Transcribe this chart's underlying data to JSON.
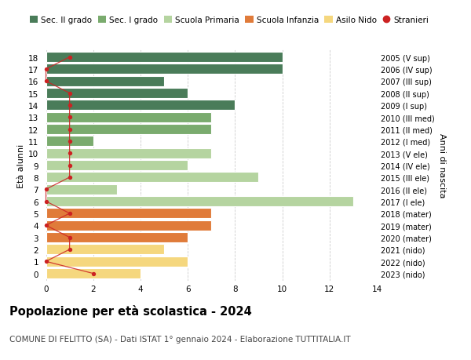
{
  "ages": [
    18,
    17,
    16,
    15,
    14,
    13,
    12,
    11,
    10,
    9,
    8,
    7,
    6,
    5,
    4,
    3,
    2,
    1,
    0
  ],
  "years": [
    "2005 (V sup)",
    "2006 (IV sup)",
    "2007 (III sup)",
    "2008 (II sup)",
    "2009 (I sup)",
    "2010 (III med)",
    "2011 (II med)",
    "2012 (I med)",
    "2013 (V ele)",
    "2014 (IV ele)",
    "2015 (III ele)",
    "2016 (II ele)",
    "2017 (I ele)",
    "2018 (mater)",
    "2019 (mater)",
    "2020 (mater)",
    "2021 (nido)",
    "2022 (nido)",
    "2023 (nido)"
  ],
  "bar_values": [
    10,
    10,
    5,
    6,
    8,
    7,
    7,
    2,
    7,
    6,
    9,
    3,
    13,
    7,
    7,
    6,
    5,
    6,
    4
  ],
  "bar_colors": [
    "#4a7c59",
    "#4a7c59",
    "#4a7c59",
    "#4a7c59",
    "#4a7c59",
    "#7aab6e",
    "#7aab6e",
    "#7aab6e",
    "#b5d4a0",
    "#b5d4a0",
    "#b5d4a0",
    "#b5d4a0",
    "#b5d4a0",
    "#e07b3a",
    "#e07b3a",
    "#e07b3a",
    "#f5d77e",
    "#f5d77e",
    "#f5d77e"
  ],
  "stranieri_x": [
    1,
    0,
    0,
    1,
    1,
    1,
    1,
    1,
    1,
    1,
    1,
    0,
    0,
    1,
    0,
    1,
    1,
    0,
    2
  ],
  "legend_labels": [
    "Sec. II grado",
    "Sec. I grado",
    "Scuola Primaria",
    "Scuola Infanzia",
    "Asilo Nido",
    "Stranieri"
  ],
  "legend_colors": [
    "#4a7c59",
    "#7aab6e",
    "#b5d4a0",
    "#e07b3a",
    "#f5d77e",
    "#cc2222"
  ],
  "title": "Popolazione per età scolastica - 2024",
  "subtitle": "COMUNE DI FELITTO (SA) - Dati ISTAT 1° gennaio 2024 - Elaborazione TUTTITALIA.IT",
  "ylabel_left": "Età alunni",
  "ylabel_right": "Anni di nascita",
  "xlim": [
    0,
    14
  ],
  "background_color": "#ffffff",
  "bar_height": 0.85,
  "grid_color": "#cccccc"
}
